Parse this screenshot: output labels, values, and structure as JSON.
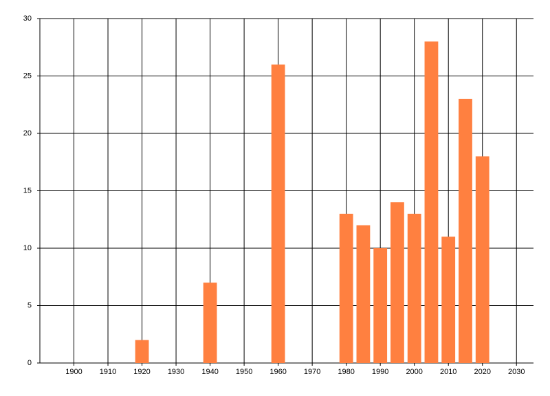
{
  "chart_data": {
    "type": "bar",
    "x": [
      1920,
      1940,
      1960,
      1980,
      1985,
      1990,
      1995,
      2000,
      2005,
      2010,
      2015,
      2020
    ],
    "values": [
      2,
      7,
      26,
      13,
      12,
      10,
      14,
      13,
      28,
      11,
      23,
      18
    ],
    "color": "#ff8040",
    "xlim": [
      1890,
      2035
    ],
    "xticks": [
      1900,
      1910,
      1920,
      1930,
      1940,
      1950,
      1960,
      1970,
      1980,
      1990,
      2000,
      2010,
      2020,
      2030
    ],
    "ylim": [
      0,
      30
    ],
    "yticks": [
      0,
      5,
      10,
      15,
      20,
      25,
      30
    ],
    "grid": true
  }
}
